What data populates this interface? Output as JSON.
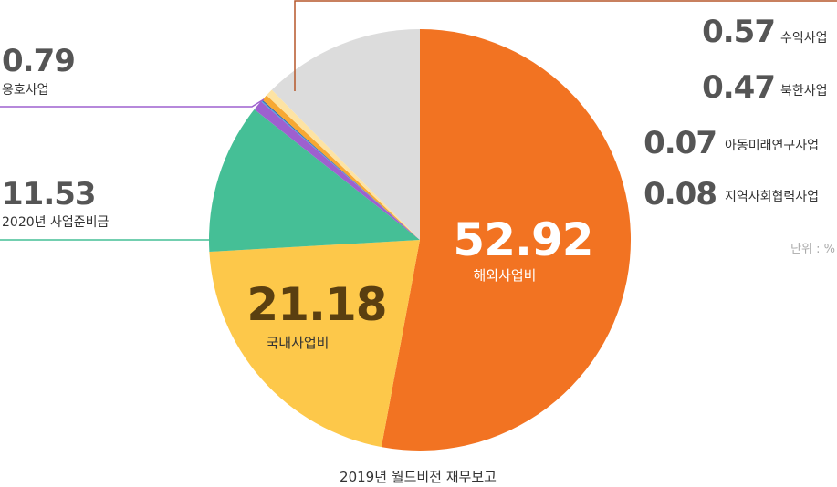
{
  "chart_data": {
    "type": "pie",
    "title": "",
    "caption": "2019년 월드비전 재무보고",
    "unit_note": "단위 : %",
    "slices": [
      {
        "label": "해외사업비",
        "value": 52.92,
        "value_text": "52.92",
        "color": "#F27322"
      },
      {
        "label": "국내사업비",
        "value": 21.18,
        "value_text": "21.18",
        "color": "#FDC84A"
      },
      {
        "label": "2020년 사업준비금",
        "value": 11.53,
        "value_text": "11.53",
        "color": "#45BF96"
      },
      {
        "label": "옹호사업",
        "value": 0.79,
        "value_text": "0.79",
        "color": "#9E60CF"
      },
      {
        "label": "지역사회협력사업",
        "value": 0.08,
        "value_text": "0.08",
        "color": "#4AA8E0"
      },
      {
        "label": "아동미래연구사업",
        "value": 0.07,
        "value_text": "0.07",
        "color": "#2E57A8"
      },
      {
        "label": "북한사업",
        "value": 0.47,
        "value_text": "0.47",
        "color": "#F7A833"
      },
      {
        "label": "수익사업",
        "value": 0.57,
        "value_text": "0.57",
        "color": "#FDE3A3"
      },
      {
        "label": "",
        "value": 12.39,
        "value_text": "",
        "color": "#DCDCDC"
      }
    ]
  }
}
